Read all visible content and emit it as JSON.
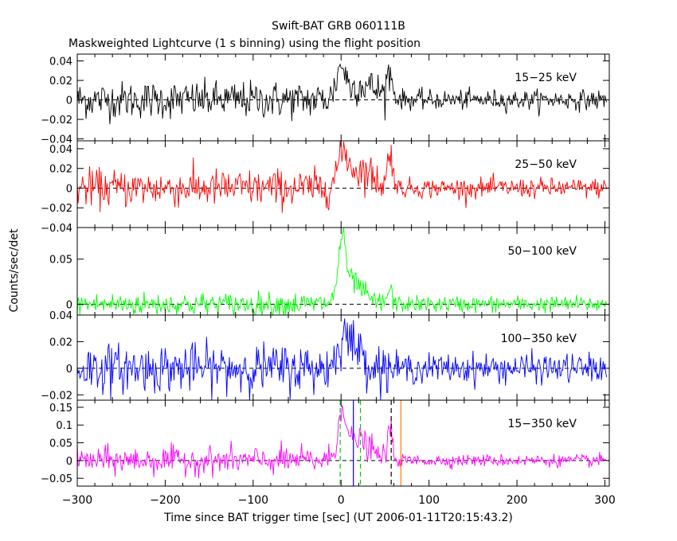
{
  "chart_data": {
    "type": "line",
    "title": "Swift-BAT GRB 060111B",
    "subtitle": "Maskweighted Lightcurve (1 s binning) using the flight position",
    "xlabel": "Time since BAT trigger time [sec] (UT 2006-01-11T20:15:43.2)",
    "ylabel": "Counts/sec/det",
    "xlim": [
      -300,
      305
    ],
    "xticks": [
      -300,
      -200,
      -100,
      0,
      100,
      200,
      300
    ],
    "xtick_labels": [
      "−300",
      "−200",
      "−100",
      "0",
      "100",
      "200",
      "300"
    ],
    "panels": [
      {
        "name": "15-25 keV",
        "label": "15−25 keV",
        "color": "#000000",
        "ylim": [
          -0.042,
          0.047
        ],
        "yticks": [
          0.04,
          0.02,
          0,
          -0.02,
          -0.04
        ],
        "ytick_labels": [
          "0.04",
          "0.02",
          "0",
          "−0.02",
          "−0.04"
        ],
        "noise_pre": 0.0095,
        "noise_post": 0.005,
        "features": [
          {
            "t": 0,
            "peak": 0.03,
            "width": 5
          },
          {
            "t": 25,
            "peak": 0.015,
            "width": 18
          },
          {
            "t": 55,
            "peak": 0.025,
            "width": 3
          }
        ]
      },
      {
        "name": "25-50 keV",
        "label": "25−50 keV",
        "color": "#ff0000",
        "ylim": [
          -0.04,
          0.048
        ],
        "yticks": [
          0.04,
          0.02,
          0,
          -0.02,
          -0.04
        ],
        "ytick_labels": [
          "0.04",
          "0.02",
          "0",
          "−0.02",
          "−0.04"
        ],
        "noise_pre": 0.0095,
        "noise_post": 0.005,
        "features": [
          {
            "t": 2,
            "peak": 0.03,
            "width": 6
          },
          {
            "t": 22,
            "peak": 0.018,
            "width": 15
          },
          {
            "t": 56,
            "peak": 0.035,
            "width": 3
          }
        ]
      },
      {
        "name": "50-100 keV",
        "label": "50−100 keV",
        "color": "#00ff00",
        "ylim": [
          -0.012,
          0.085
        ],
        "yticks": [
          0.05,
          0
        ],
        "ytick_labels": [
          "0.05",
          "0"
        ],
        "noise_pre": 0.0065,
        "noise_post": 0.0045,
        "features": [
          {
            "t": 1,
            "peak": 0.06,
            "width": 4
          },
          {
            "t": 12,
            "peak": 0.025,
            "width": 12
          },
          {
            "t": 55,
            "peak": 0.015,
            "width": 3
          }
        ]
      },
      {
        "name": "100-350 keV",
        "label": "100−350 keV",
        "color": "#0000ff",
        "ylim": [
          -0.024,
          0.04
        ],
        "yticks": [
          0.04,
          0.02,
          0,
          -0.02
        ],
        "ytick_labels": [
          "0.04",
          "0.02",
          "0",
          "−0.02"
        ],
        "noise_pre": 0.009,
        "noise_post": 0.0055,
        "features": [
          {
            "t": 2,
            "peak": 0.02,
            "width": 6
          },
          {
            "t": 16,
            "peak": 0.015,
            "width": 10
          }
        ]
      },
      {
        "name": "15-350 keV",
        "label": "15−350 keV",
        "color": "#ff00ff",
        "ylim": [
          -0.072,
          0.17
        ],
        "yticks": [
          0.15,
          0.1,
          0.05,
          0,
          -0.05
        ],
        "ytick_labels": [
          "0.15",
          "0.1",
          "0.05",
          "0",
          "−0.05"
        ],
        "noise_pre": 0.019,
        "noise_post": 0.0085,
        "features": [
          {
            "t": 1,
            "peak": 0.13,
            "width": 4
          },
          {
            "t": 18,
            "peak": 0.06,
            "width": 14
          },
          {
            "t": 55,
            "peak": 0.08,
            "width": 3
          }
        ],
        "markers": [
          {
            "t": -1,
            "color": "#00cc00",
            "style": "dashed"
          },
          {
            "t": 22,
            "color": "#00cc00",
            "style": "dashed"
          },
          {
            "t": 14,
            "color": "#0000ff",
            "style": "solid"
          },
          {
            "t": 57,
            "color": "#000000",
            "style": "dashed"
          },
          {
            "t": 68,
            "color": "#ff7f00",
            "style": "solid"
          }
        ]
      }
    ],
    "colors": {
      "background": "#ffffff",
      "axes": "#000000"
    }
  }
}
